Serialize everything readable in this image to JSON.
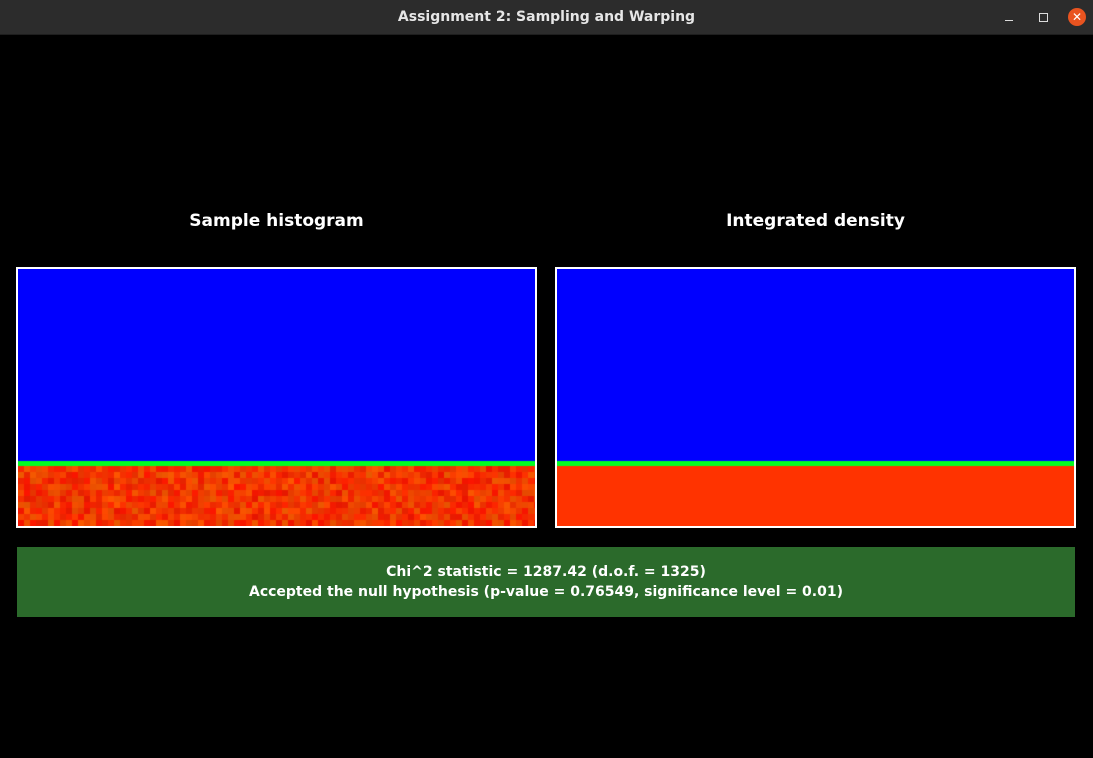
{
  "window": {
    "title": "Assignment 2: Sampling and Warping",
    "controls": {
      "minimize_icon": "minimize-icon",
      "maximize_icon": "maximize-icon",
      "close_icon": "close-icon",
      "close_color": "#e95420"
    }
  },
  "panels": {
    "left": {
      "heading": "Sample histogram"
    },
    "right": {
      "heading": "Integrated density"
    }
  },
  "colors": {
    "background": "#000000",
    "low_value": "#0000ff",
    "boundary": "#00ff22",
    "high_value": "#ff3300",
    "result_bar": "#2b6a2b"
  },
  "result": {
    "statistic_line": "Chi^2 statistic = 1287.42 (d.o.f. = 1325)",
    "hypothesis_line": "Accepted the null hypothesis (p-value = 0.76549, significance level = 0.01)"
  }
}
